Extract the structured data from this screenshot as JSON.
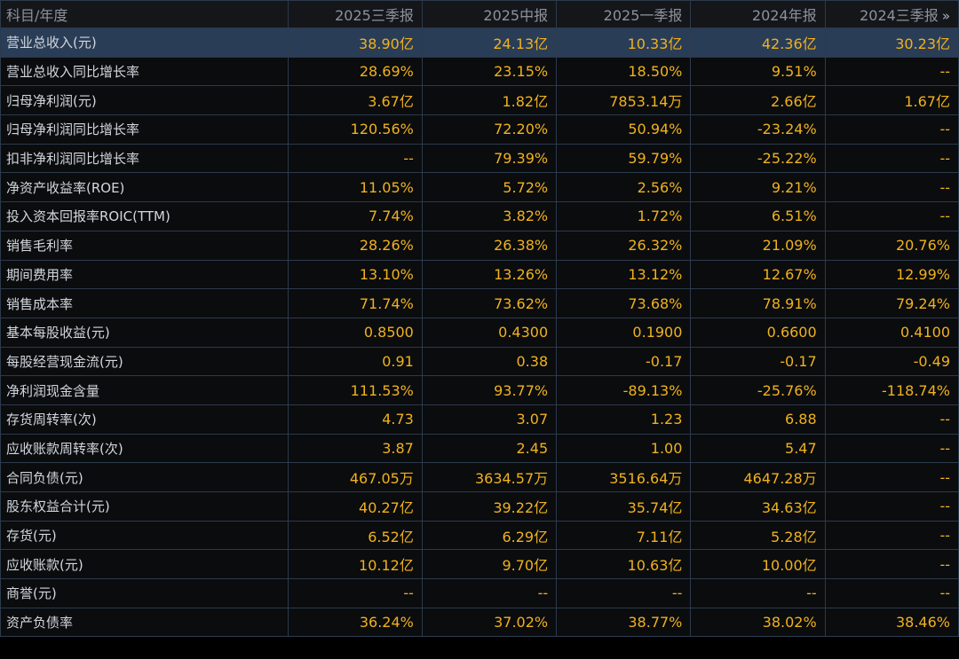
{
  "table": {
    "header": {
      "label_col": "科目/年度",
      "columns": [
        "2025三季报",
        "2025中报",
        "2025一季报",
        "2024年报",
        "2024三季报"
      ],
      "more_icon": "double-chevron-right-icon",
      "more_glyph": "»"
    },
    "selected_row": 0,
    "rows": [
      {
        "label": "营业总收入(元)",
        "values": [
          "38.90亿",
          "24.13亿",
          "10.33亿",
          "42.36亿",
          "30.23亿"
        ]
      },
      {
        "label": "营业总收入同比增长率",
        "values": [
          "28.69%",
          "23.15%",
          "18.50%",
          "9.51%",
          "--"
        ]
      },
      {
        "label": "归母净利润(元)",
        "values": [
          "3.67亿",
          "1.82亿",
          "7853.14万",
          "2.66亿",
          "1.67亿"
        ]
      },
      {
        "label": "归母净利润同比增长率",
        "values": [
          "120.56%",
          "72.20%",
          "50.94%",
          "-23.24%",
          "--"
        ]
      },
      {
        "label": "扣非净利润同比增长率",
        "values": [
          "--",
          "79.39%",
          "59.79%",
          "-25.22%",
          "--"
        ]
      },
      {
        "label": "净资产收益率(ROE)",
        "values": [
          "11.05%",
          "5.72%",
          "2.56%",
          "9.21%",
          "--"
        ]
      },
      {
        "label": "投入资本回报率ROIC(TTM)",
        "values": [
          "7.74%",
          "3.82%",
          "1.72%",
          "6.51%",
          "--"
        ]
      },
      {
        "label": "销售毛利率",
        "values": [
          "28.26%",
          "26.38%",
          "26.32%",
          "21.09%",
          "20.76%"
        ]
      },
      {
        "label": "期间费用率",
        "values": [
          "13.10%",
          "13.26%",
          "13.12%",
          "12.67%",
          "12.99%"
        ]
      },
      {
        "label": "销售成本率",
        "values": [
          "71.74%",
          "73.62%",
          "73.68%",
          "78.91%",
          "79.24%"
        ]
      },
      {
        "label": "基本每股收益(元)",
        "values": [
          "0.8500",
          "0.4300",
          "0.1900",
          "0.6600",
          "0.4100"
        ]
      },
      {
        "label": "每股经营现金流(元)",
        "values": [
          "0.91",
          "0.38",
          "-0.17",
          "-0.17",
          "-0.49"
        ]
      },
      {
        "label": "净利润现金含量",
        "values": [
          "111.53%",
          "93.77%",
          "-89.13%",
          "-25.76%",
          "-118.74%"
        ]
      },
      {
        "label": "存货周转率(次)",
        "values": [
          "4.73",
          "3.07",
          "1.23",
          "6.88",
          "--"
        ]
      },
      {
        "label": "应收账款周转率(次)",
        "values": [
          "3.87",
          "2.45",
          "1.00",
          "5.47",
          "--"
        ]
      },
      {
        "label": "合同负债(元)",
        "values": [
          "467.05万",
          "3634.57万",
          "3516.64万",
          "4647.28万",
          "--"
        ]
      },
      {
        "label": "股东权益合计(元)",
        "values": [
          "40.27亿",
          "39.22亿",
          "35.74亿",
          "34.63亿",
          "--"
        ]
      },
      {
        "label": "存货(元)",
        "values": [
          "6.52亿",
          "6.29亿",
          "7.11亿",
          "5.28亿",
          "--"
        ]
      },
      {
        "label": "应收账款(元)",
        "values": [
          "10.12亿",
          "9.70亿",
          "10.63亿",
          "10.00亿",
          "--"
        ]
      },
      {
        "label": "商誉(元)",
        "values": [
          "--",
          "--",
          "--",
          "--",
          "--"
        ]
      },
      {
        "label": "资产负债率",
        "values": [
          "36.24%",
          "37.02%",
          "38.77%",
          "38.02%",
          "38.46%"
        ]
      }
    ]
  },
  "colors": {
    "background": "#0b0c0e",
    "selected_row": "#2a3d57",
    "value_text": "#f0b21e",
    "label_text": "#d2d6dc",
    "header_text": "#8e939a",
    "grid": "#2c3a4c"
  }
}
